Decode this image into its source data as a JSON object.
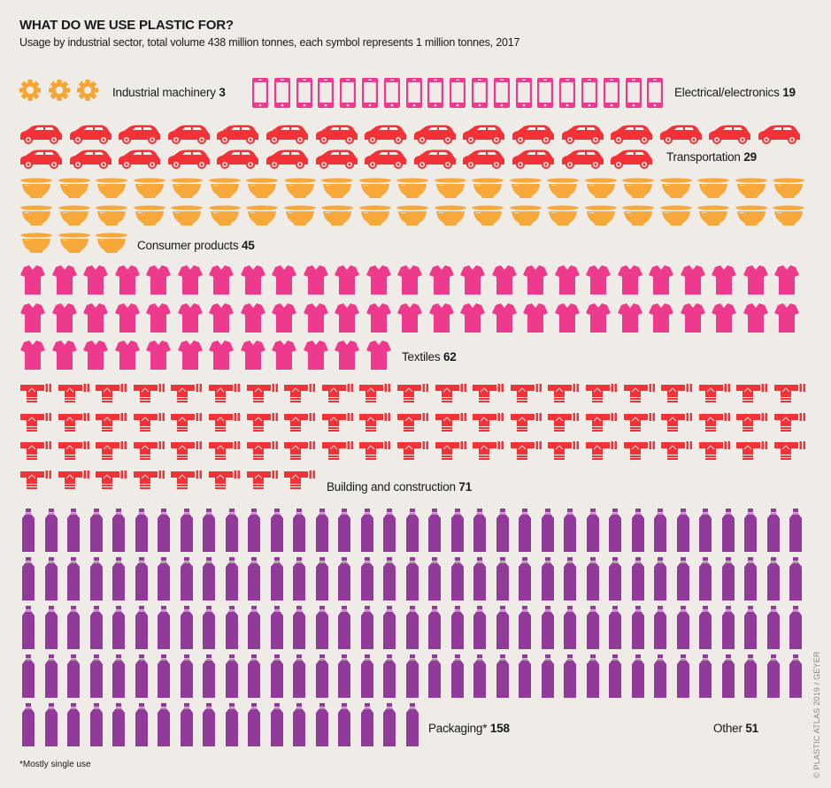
{
  "chart_data": {
    "type": "pictogram",
    "title": "WHAT DO WE USE PLASTIC FOR?",
    "subtitle": "Usage by industrial sector, total volume 438 million tonnes, each symbol represents 1 million tonnes, 2017",
    "unit": "million tonnes",
    "symbol_value": 1,
    "total": 438,
    "year": 2017,
    "categories": [
      {
        "name": "Industrial machinery",
        "value": 3,
        "icon": "gear-icon",
        "color": "#f7a530"
      },
      {
        "name": "Electrical/electronics",
        "value": 19,
        "icon": "smartphone-icon",
        "color": "#ee3a8c"
      },
      {
        "name": "Transportation",
        "value": 29,
        "icon": "car-icon",
        "color": "#f23236"
      },
      {
        "name": "Consumer products",
        "value": 45,
        "icon": "bowl-icon",
        "color": "#f7a83a"
      },
      {
        "name": "Textiles",
        "value": 62,
        "icon": "tshirt-icon",
        "color": "#ee3a8c"
      },
      {
        "name": "Building and construction",
        "value": 71,
        "icon": "pipe-fitting-icon",
        "color": "#f23236"
      },
      {
        "name": "Packaging*",
        "value": 158,
        "icon": "bottle-icon",
        "color": "#923a9a"
      },
      {
        "name": "Other",
        "value": 51,
        "icon": null,
        "color": null
      }
    ],
    "footnote": "*Mostly single use",
    "credit": "© PLASTIC ATLAS 2019 / GEYER"
  }
}
